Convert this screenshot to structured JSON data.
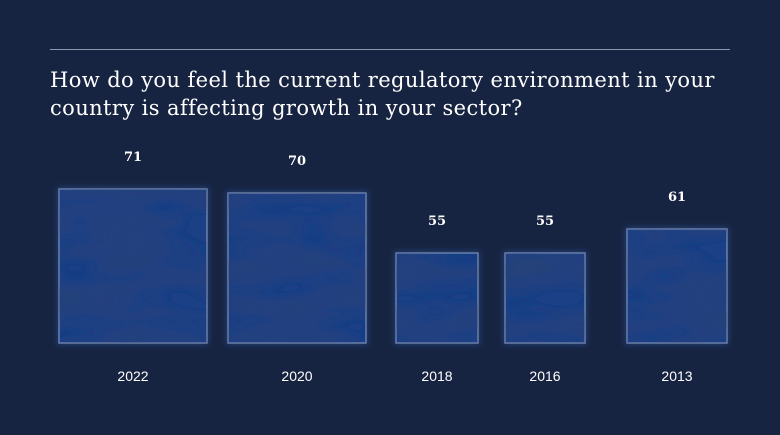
{
  "title": "How do you feel the current regulatory environment in your country is affecting growth in your sector?",
  "colors": {
    "background": "#172441",
    "bar_fill": "#1f3f85",
    "bar_edge": "#c9d6ee",
    "text": "#ffffff",
    "rule": "#8d97ad"
  },
  "chart_data": {
    "type": "bar",
    "title": "How do you feel the current regulatory environment in your country is affecting growth in your sector?",
    "categories": [
      "2022",
      "2020",
      "2018",
      "2016",
      "2013"
    ],
    "values": [
      71,
      70,
      55,
      55,
      61
    ],
    "xlabel": "",
    "ylabel": "",
    "grid": false,
    "legend": "none"
  }
}
